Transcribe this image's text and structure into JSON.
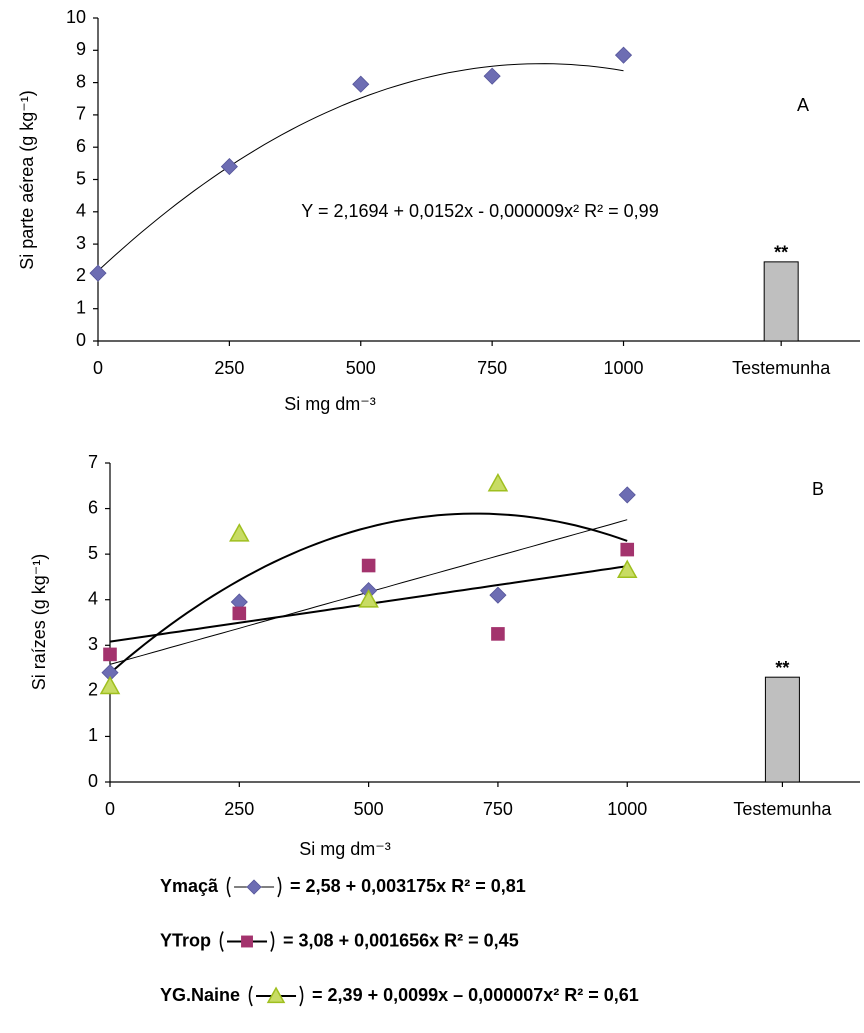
{
  "chart_data": [
    {
      "type": "scatter",
      "label": "A",
      "equation": "Y = 2,1694 + 0,0152x - 0,000009x²    R² = 0,99",
      "x_label": "Si mg dm⁻³",
      "y_label": "Si  parte aérea (g kg⁻¹)",
      "x": [
        0,
        250,
        500,
        750,
        1000
      ],
      "series": [
        {
          "color": "#6d6db3",
          "marker": "diamond",
          "values": [
            2.1,
            5.4,
            7.95,
            8.2,
            8.85
          ],
          "trend": [
            2.1694,
            0.0152,
            -9e-06
          ],
          "line_width": 1
        }
      ],
      "control": {
        "value": 2.45,
        "annotation": "**",
        "color": "#bfbfbf"
      },
      "xlim": [
        0,
        1450
      ],
      "ylim": [
        0,
        10
      ],
      "xticks": [
        0,
        250,
        500,
        750,
        1000,
        {
          "value": 1300,
          "label": "Testemunha"
        }
      ],
      "yticks": [
        0,
        1,
        2,
        3,
        4,
        5,
        6,
        7,
        8,
        9,
        10
      ]
    },
    {
      "type": "scatter",
      "label": "B",
      "x_label": "Si mg dm⁻³",
      "y_label": "Si  raízes (g kg⁻¹)",
      "x": [
        0,
        250,
        500,
        750,
        1000
      ],
      "series": [
        {
          "name": "Ymaçã",
          "equation": "= 2,58 + 0,003175x    R² = 0,81",
          "color": "#6d6db3",
          "marker": "diamond",
          "values": [
            2.4,
            3.95,
            4.2,
            4.1,
            6.3
          ],
          "trend": [
            2.58,
            0.003175
          ],
          "line_width": 1
        },
        {
          "name": "YTrop",
          "equation": "= 3,08 + 0,001656x    R² = 0,45",
          "color": "#a3336d",
          "marker": "square",
          "values": [
            2.8,
            3.7,
            4.75,
            3.25,
            5.1
          ],
          "trend": [
            3.08,
            0.001656
          ],
          "line_width": 2
        },
        {
          "name": "YG.Naine",
          "equation": "= 2,39 + 0,0099x – 0,000007x²    R² = 0,61",
          "color": "#c8dc64",
          "marker": "triangle",
          "values": [
            2.1,
            5.45,
            4.0,
            6.55,
            4.65
          ],
          "trend": [
            2.39,
            0.0099,
            -7e-06
          ],
          "line_width": 2
        }
      ],
      "control": {
        "value": 2.3,
        "annotation": "**",
        "color": "#bfbfbf"
      },
      "xlim": [
        0,
        1450
      ],
      "ylim": [
        0,
        7
      ],
      "xticks": [
        0,
        250,
        500,
        750,
        1000,
        {
          "value": 1300,
          "label": "Testemunha"
        }
      ],
      "yticks": [
        0,
        1,
        2,
        3,
        4,
        5,
        6,
        7
      ]
    }
  ]
}
